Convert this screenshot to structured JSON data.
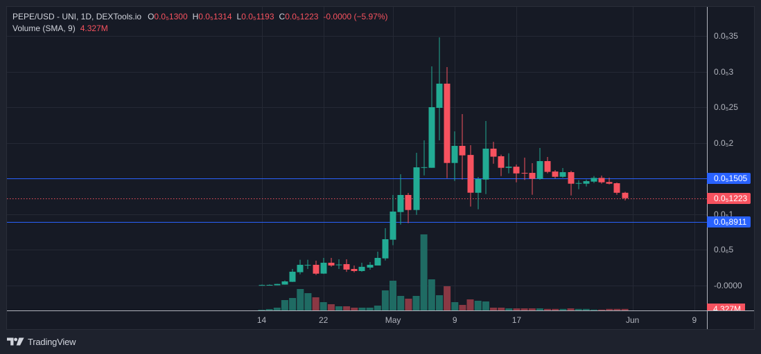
{
  "header": {
    "symbol": "PEPE/USD - UNI, 1D, DEXTools.io",
    "ohlc": [
      {
        "label": "O",
        "value": "0.0₅1300"
      },
      {
        "label": "H",
        "value": "0.0₅1314"
      },
      {
        "label": "L",
        "value": "0.0₅1193"
      },
      {
        "label": "C",
        "value": "0.0₅1223"
      }
    ],
    "change": "-0.0000 (−5.97%)",
    "volume_label": "Volume (SMA, 9)",
    "volume_value": "4.327M"
  },
  "price_axis": {
    "ticks": [
      {
        "label": "0.0₅35",
        "value": 3.5e-06
      },
      {
        "label": "0.0₅3",
        "value": 3e-06
      },
      {
        "label": "0.0₅25",
        "value": 2.5e-06
      },
      {
        "label": "0.0₅2",
        "value": 2e-06
      },
      {
        "label": "0.0₅1",
        "value": 1e-06
      },
      {
        "label": "0.0₆5",
        "value": 5e-07
      },
      {
        "label": "-0.0000",
        "value": 0
      }
    ]
  },
  "price_labels": [
    {
      "label": "0.0₅1505",
      "value": 1.505e-06,
      "color": "#2962ff"
    },
    {
      "label": "0.0₅1223",
      "value": 1.223e-06,
      "color": "#f7525f"
    },
    {
      "label": "0.0₆8911",
      "value": 8.911e-07,
      "color": "#2962ff"
    }
  ],
  "volume_label": {
    "label": "4.327M",
    "color": "#f7525f"
  },
  "time_axis": {
    "ticks": [
      {
        "label": "14",
        "index": 0
      },
      {
        "label": "22",
        "index": 8
      },
      {
        "label": "May",
        "index": 17
      },
      {
        "label": "9",
        "index": 25
      },
      {
        "label": "17",
        "index": 33
      },
      {
        "label": "Jun",
        "index": 48
      },
      {
        "label": "9",
        "index": 56
      }
    ]
  },
  "branding": {
    "logo_text": "TradingView"
  },
  "colors": {
    "up": "#22ab94",
    "down": "#f7525f",
    "volume_up": "#1f6b63",
    "volume_down": "#8a3844",
    "price_line": "#2962ff",
    "last_price_line": "#f7525f",
    "background": "#161a25",
    "grid": "#252935",
    "axis_line": "#b2b5be"
  },
  "chart_data": {
    "type": "candlestick",
    "title": "PEPE/USD - UNI, 1D, DEXTools.io",
    "xlabel": "",
    "ylabel": "",
    "x": [
      "Apr 14",
      "Apr 15",
      "Apr 16",
      "Apr 17",
      "Apr 18",
      "Apr 19",
      "Apr 20",
      "Apr 21",
      "Apr 22",
      "Apr 23",
      "Apr 24",
      "Apr 25",
      "Apr 26",
      "Apr 27",
      "Apr 28",
      "Apr 29",
      "Apr 30",
      "May 1",
      "May 2",
      "May 3",
      "May 4",
      "May 5",
      "May 6",
      "May 7",
      "May 8",
      "May 9",
      "May 10",
      "May 11",
      "May 12",
      "May 13",
      "May 14",
      "May 15",
      "May 16",
      "May 17",
      "May 18",
      "May 19",
      "May 20",
      "May 21",
      "May 22",
      "May 23",
      "May 24",
      "May 25",
      "May 26",
      "May 27",
      "May 28",
      "May 29",
      "May 30",
      "May 31"
    ],
    "open": [
      0.0,
      0.0,
      0.0,
      9e-09,
      4.8e-08,
      1.84e-07,
      2.83e-07,
      2.88e-07,
      1.64e-07,
      3.17e-07,
      2.89e-07,
      2.97e-07,
      2.29e-07,
      2e-07,
      2.49e-07,
      2.78e-07,
      3.78e-07,
      6.4e-07,
      1.029e-06,
      1.269e-06,
      1.058e-06,
      1.652e-06,
      1.651e-06,
      2.494e-06,
      2.834e-06,
      1.719e-06,
      1.959e-06,
      1.832e-06,
      1.301e-06,
      1.486e-06,
      1.92e-06,
      1.813e-06,
      1.651e-06,
      1.667e-06,
      1.58e-06,
      1.58e-06,
      1.496e-06,
      1.745e-06,
      1.599e-06,
      1.525e-06,
      1.59e-06,
      1.428e-06,
      1.428e-06,
      1.457e-06,
      1.509e-06,
      1.451e-06,
      1.434e-06,
      1.3e-06
    ],
    "high": [
      1e-08,
      1.2e-08,
      2e-08,
      6.7e-08,
      2.29e-07,
      3.59e-07,
      3.59e-07,
      3.46e-07,
      3.85e-07,
      3.85e-07,
      3.65e-07,
      3.65e-07,
      2.78e-07,
      3.17e-07,
      3.27e-07,
      4.72e-07,
      8.03e-07,
      1.269e-06,
      1.561e-06,
      1.298e-06,
      1.862e-06,
      2.037e-06,
      3.077e-06,
      3.485e-06,
      3.067e-06,
      2.163e-06,
      2.406e-06,
      1.969e-06,
      1.522e-06,
      2.309e-06,
      2.017e-06,
      1.836e-06,
      1.855e-06,
      1.697e-06,
      1.794e-06,
      1.716e-06,
      1.93e-06,
      1.804e-06,
      1.619e-06,
      1.648e-06,
      1.609e-06,
      1.476e-06,
      1.486e-06,
      1.535e-06,
      1.541e-06,
      1.512e-06,
      1.444e-06,
      1.314e-06
    ],
    "low": [
      0.0,
      0.0,
      0.0,
      9e-09,
      4.6e-08,
      1.55e-07,
      2.29e-07,
      1.45e-07,
      1.6e-07,
      2.61e-07,
      2.29e-07,
      1.88e-07,
      1.81e-07,
      1.9e-07,
      2.2e-07,
      2.78e-07,
      3.49e-07,
      5.63e-07,
      8.54e-07,
      8.74e-07,
      9.9e-07,
      1.544e-06,
      1.651e-06,
      2.037e-06,
      1.505e-06,
      1.466e-06,
      1.486e-06,
      1.107e-06,
      1.068e-06,
      1.282e-06,
      1.709e-06,
      1.535e-06,
      1.573e-06,
      1.447e-06,
      1.48e-06,
      1.272e-06,
      1.483e-06,
      1.573e-06,
      1.502e-06,
      1.512e-06,
      1.262e-06,
      1.35e-06,
      1.389e-06,
      1.437e-06,
      1.428e-06,
      1.418e-06,
      1.272e-06,
      1.193e-06
    ],
    "close": [
      4e-09,
      6e-09,
      1.8e-08,
      5.4e-08,
      1.9e-07,
      2.88e-07,
      2.87e-07,
      1.64e-07,
      3.17e-07,
      2.78e-07,
      2.92e-07,
      2.2e-07,
      2e-07,
      2.59e-07,
      2.88e-07,
      3.85e-07,
      6.47e-07,
      1.036e-06,
      1.269e-06,
      1.058e-06,
      1.658e-06,
      1.66e-06,
      2.503e-06,
      2.834e-06,
      1.719e-06,
      1.959e-06,
      1.826e-06,
      1.301e-06,
      1.493e-06,
      1.92e-06,
      1.807e-06,
      1.651e-06,
      1.667e-06,
      1.573e-06,
      1.575e-06,
      1.496e-06,
      1.745e-06,
      1.593e-06,
      1.525e-06,
      1.59e-06,
      1.428e-06,
      1.437e-06,
      1.464e-06,
      1.509e-06,
      1.447e-06,
      1.428e-06,
      1.3e-06,
      1.223e-06
    ],
    "volume": [
      2000000.0,
      4000000.0,
      8000000.0,
      30000000.0,
      36000000.0,
      62000000.0,
      50000000.0,
      38000000.0,
      24000000.0,
      18000000.0,
      12000000.0,
      12000000.0,
      8000000.0,
      8000000.0,
      8000000.0,
      14000000.0,
      58000000.0,
      86000000.0,
      42000000.0,
      34000000.0,
      42000000.0,
      220000000.0,
      90000000.0,
      44000000.0,
      70000000.0,
      24000000.0,
      16000000.0,
      32000000.0,
      28000000.0,
      26000000.0,
      8000000.0,
      8000000.0,
      6000000.0,
      6000000.0,
      6000000.0,
      6000000.0,
      6000000.0,
      4500000.0,
      4500000.0,
      4500000.0,
      6000000.0,
      4500000.0,
      4500000.0,
      2500000.0,
      2500000.0,
      4400000.0,
      4400000.0,
      4327000.0
    ],
    "volume_indicator": "Volume (SMA, 9)",
    "last_bar": {
      "open": 1.3e-06,
      "high": 1.314e-06,
      "low": 1.193e-06,
      "close": 1.223e-06,
      "change": "-0.0000 (−5.97%)",
      "volume": "4.327M"
    },
    "horizontal_lines": [
      {
        "value": 1.505e-06,
        "label": "0.0₅1505",
        "style": "solid",
        "color": "#2962ff"
      },
      {
        "value": 8.911e-07,
        "label": "0.0₆8911",
        "style": "solid",
        "color": "#2962ff"
      },
      {
        "value": 1.223e-06,
        "label": "0.0₅1223",
        "style": "dotted",
        "color": "#f7525f"
      }
    ],
    "y_ticks": [
      "0.0₅35",
      "0.0₅3",
      "0.0₅25",
      "0.0₅2",
      "0.0₅1",
      "0.0₆5",
      "-0.0000"
    ],
    "x_ticks": [
      "14",
      "22",
      "May",
      "9",
      "17",
      "Jun",
      "9"
    ],
    "ylim": [
      -3.5e-07,
      3.91e-06
    ],
    "grid": true,
    "legend_position": "top-left"
  }
}
